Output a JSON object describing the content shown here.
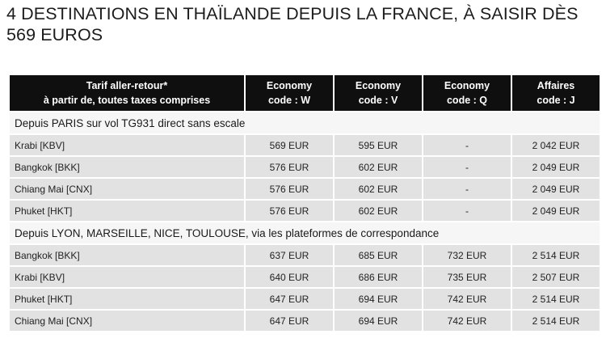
{
  "title": "4 DESTINATIONS EN THAÏLANDE DEPUIS LA FRANCE, À SAISIR DÈS 569 EUROS",
  "table": {
    "headers": [
      [
        "Tarif aller-retour*",
        "à partir de, toutes taxes comprises"
      ],
      [
        "Economy",
        "code : W"
      ],
      [
        "Economy",
        "code : V"
      ],
      [
        "Economy",
        "code : Q"
      ],
      [
        "Affaires",
        "code : J"
      ]
    ],
    "sections": [
      {
        "label": "Depuis PARIS sur vol TG931 direct sans escale",
        "rows": [
          [
            "Krabi [KBV]",
            "569 EUR",
            "595 EUR",
            "-",
            "2 042 EUR"
          ],
          [
            "Bangkok [BKK]",
            "576 EUR",
            "602 EUR",
            "-",
            "2 049 EUR"
          ],
          [
            "Chiang Mai [CNX]",
            "576 EUR",
            "602 EUR",
            "-",
            "2 049 EUR"
          ],
          [
            "Phuket [HKT]",
            "576 EUR",
            "602 EUR",
            "-",
            "2 049 EUR"
          ]
        ]
      },
      {
        "label": "Depuis LYON, MARSEILLE, NICE, TOULOUSE, via les plateformes de correspondance",
        "rows": [
          [
            "Bangkok [BKK]",
            "637 EUR",
            "685 EUR",
            "732 EUR",
            "2 514 EUR"
          ],
          [
            "Krabi [KBV]",
            "640 EUR",
            "686 EUR",
            "735 EUR",
            "2 507 EUR"
          ],
          [
            "Phuket [HKT]",
            "647 EUR",
            "694 EUR",
            "742 EUR",
            "2 514 EUR"
          ],
          [
            "Chiang Mai [CNX]",
            "647 EUR",
            "694 EUR",
            "742 EUR",
            "2 514 EUR"
          ]
        ]
      }
    ]
  }
}
